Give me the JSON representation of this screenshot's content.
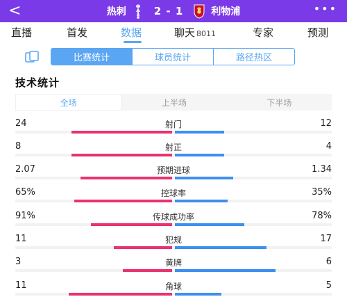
{
  "header": {
    "back": "<",
    "home_team": "热刺",
    "score": "2 - 1",
    "away_team": "利物浦",
    "more": "•••",
    "background": "#7b3ae8"
  },
  "tabs": [
    {
      "label": "直播",
      "active": false
    },
    {
      "label": "首发",
      "active": false
    },
    {
      "label": "数据",
      "active": true
    },
    {
      "label": "聊天",
      "count": "8011",
      "active": false
    },
    {
      "label": "专家",
      "active": false
    },
    {
      "label": "预测",
      "active": false
    }
  ],
  "segment": {
    "icon": "clipboard-icon",
    "options": [
      "比赛统计",
      "球员统计",
      "路径热区"
    ],
    "selected": "比赛统计"
  },
  "section_title": "技术统计",
  "period": {
    "options": [
      "全场",
      "上半场",
      "下半场"
    ],
    "selected": "全场"
  },
  "colors": {
    "home": "#e8336e",
    "away": "#3d8ff0",
    "accent": "#5aa6f3"
  },
  "stats": [
    {
      "label": "射门",
      "home": "24",
      "away": "12",
      "home_share": 0.67,
      "away_share": 0.33
    },
    {
      "label": "射正",
      "home": "8",
      "away": "4",
      "home_share": 0.67,
      "away_share": 0.33
    },
    {
      "label": "预期进球",
      "home": "2.07",
      "away": "1.34",
      "home_share": 0.61,
      "away_share": 0.39
    },
    {
      "label": "控球率",
      "home": "65%",
      "away": "35%",
      "home_share": 0.65,
      "away_share": 0.35
    },
    {
      "label": "传球成功率",
      "home": "91%",
      "away": "78%",
      "home_share": 0.54,
      "away_share": 0.46
    },
    {
      "label": "犯规",
      "home": "11",
      "away": "17",
      "home_share": 0.39,
      "away_share": 0.61
    },
    {
      "label": "黄牌",
      "home": "3",
      "away": "6",
      "home_share": 0.33,
      "away_share": 0.67
    },
    {
      "label": "角球",
      "home": "11",
      "away": "5",
      "home_share": 0.69,
      "away_share": 0.31
    }
  ]
}
